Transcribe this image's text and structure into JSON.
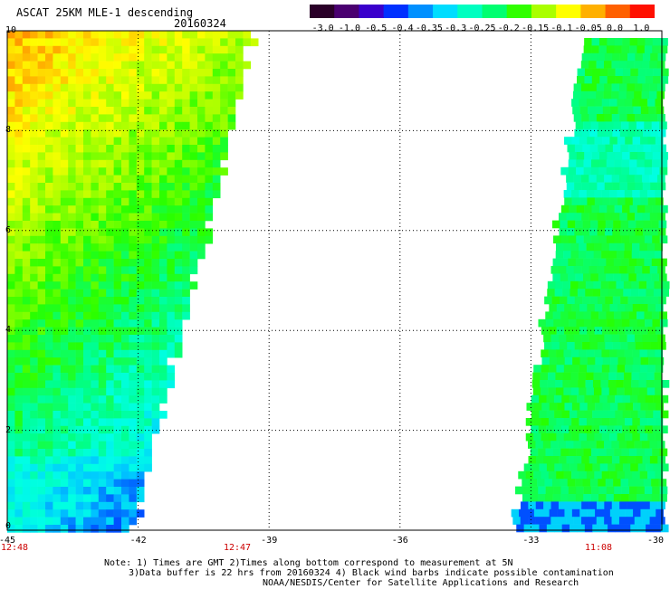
{
  "header": {
    "title": "ASCAT 25KM MLE-1 descending",
    "date": "20160324"
  },
  "colorbar": {
    "labels": [
      "-3.0",
      "-1.0",
      "-0.5",
      "-0.4",
      "-0.35",
      "-0.3",
      "-0.25",
      "-0.2",
      "-0.15",
      "-0.1",
      "-0.05",
      "0.0",
      "1.0"
    ],
    "colors": [
      "#2a0028",
      "#4a0070",
      "#3a00cc",
      "#0030ff",
      "#0090ff",
      "#00ddff",
      "#00ffc0",
      "#00ff70",
      "#30ff00",
      "#aaff00",
      "#ffff00",
      "#ffb000",
      "#ff6000",
      "#ff1000"
    ]
  },
  "axes": {
    "x_ticks": [
      "-45",
      "-42",
      "-39",
      "-36",
      "-33",
      "-30"
    ],
    "y_ticks": [
      "10",
      "8",
      "6",
      "4",
      "2",
      "0"
    ]
  },
  "times": [
    "12:48",
    "12:47",
    "11:08"
  ],
  "notes": [
    "Note: 1) Times are GMT 2)Times along bottom correspond to measurement at 5N",
    "3)Data buffer is 22 hrs from 20160324 4) Black wind barbs indicate possible contamination",
    "NOAA/NESDIS/Center for Satellite Applications and Research"
  ],
  "map_data": {
    "lon_range": [
      -45,
      -30
    ],
    "lat_range": [
      0,
      10
    ],
    "grid": "dotted",
    "swaths": [
      {
        "name": "west swath",
        "lon_start": -45,
        "lon_east_edge_at_lat10": -39.4,
        "lon_east_edge_at_lat0": -42.2,
        "dominant_values": "-0.05 to 0.0 north, -0.25 to -0.15 south"
      },
      {
        "name": "east swath",
        "lon_west_edge_at_lat10": -31.8,
        "lon_west_edge_at_lat0": -33.4,
        "lon_end": -30,
        "dominant_values": "-0.25 to -0.15, some -0.4 in south"
      }
    ]
  }
}
